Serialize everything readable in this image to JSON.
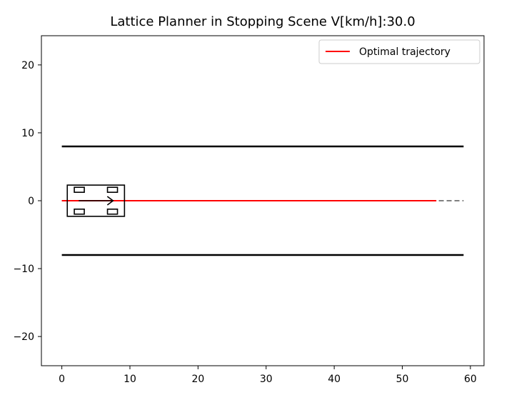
{
  "chart_data": {
    "type": "line",
    "title": "Lattice Planner in Stopping Scene V[km/h]:30.0",
    "xlabel": "",
    "ylabel": "",
    "xlim": [
      -3,
      62
    ],
    "ylim": [
      -24.3,
      24.3
    ],
    "x_ticks": [
      0,
      10,
      20,
      30,
      40,
      50,
      60
    ],
    "y_ticks": [
      20,
      10,
      0,
      -10,
      -20
    ],
    "x_tick_labels": [
      "0",
      "10",
      "20",
      "30",
      "40",
      "50",
      "60"
    ],
    "y_tick_labels": [
      "20",
      "10",
      "0",
      "−10",
      "−20"
    ],
    "grid": false,
    "legend": {
      "position": "upper right",
      "entries": [
        "Optimal trajectory"
      ]
    },
    "series": [
      {
        "name": "Optimal trajectory",
        "color": "#ff0000",
        "style": "solid",
        "x": [
          0,
          55
        ],
        "y": [
          0,
          0
        ]
      },
      {
        "color": "#808080",
        "style": "dashed",
        "x": [
          0,
          59
        ],
        "y": [
          0,
          0
        ]
      },
      {
        "color": "#000000",
        "style": "solid",
        "x": [
          0,
          59
        ],
        "y": [
          8,
          8
        ]
      },
      {
        "color": "#000000",
        "style": "solid",
        "x": [
          0,
          59
        ],
        "y": [
          -8,
          -8
        ]
      }
    ],
    "vehicle": {
      "x": 5,
      "y": 0,
      "heading": "right",
      "length": 8.4,
      "width": 4.6
    }
  }
}
